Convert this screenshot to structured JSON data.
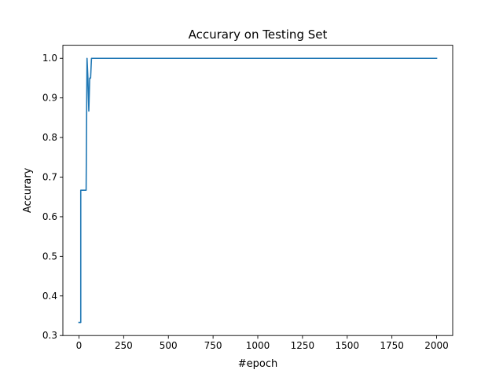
{
  "chart_data": {
    "type": "line",
    "title": "Accurary on Testing Set",
    "xlabel": "#epoch",
    "ylabel": "Accurary",
    "xlim": [
      -90,
      2090
    ],
    "ylim": [
      0.3,
      1.033
    ],
    "xticks": [
      0,
      250,
      500,
      750,
      1000,
      1250,
      1500,
      1750,
      2000
    ],
    "xtick_labels": [
      "0",
      "250",
      "500",
      "750",
      "1000",
      "1250",
      "1500",
      "1750",
      "2000"
    ],
    "yticks": [
      0.3,
      0.4,
      0.5,
      0.6,
      0.7,
      0.8,
      0.9,
      1.0
    ],
    "ytick_labels": [
      "0.3",
      "0.4",
      "0.5",
      "0.6",
      "0.7",
      "0.8",
      "0.9",
      "1.0"
    ],
    "grid": false,
    "line_color": "#1f77b4",
    "series": [
      {
        "x": [
          0,
          10,
          10,
          20,
          30,
          40,
          45,
          50,
          55,
          60,
          65,
          70,
          75,
          80,
          100,
          500,
          1000,
          1500,
          2000
        ],
        "y": [
          0.333,
          0.333,
          0.667,
          0.667,
          0.667,
          0.667,
          1.0,
          0.95,
          0.867,
          0.95,
          0.95,
          1.0,
          1.0,
          1.0,
          1.0,
          1.0,
          1.0,
          1.0,
          1.0
        ]
      }
    ]
  }
}
